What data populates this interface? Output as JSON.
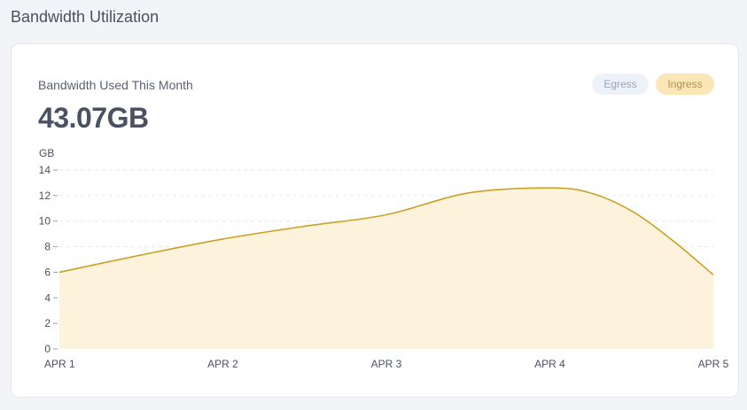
{
  "page": {
    "title": "Bandwidth Utilization"
  },
  "card": {
    "title": "Bandwidth Used This Month",
    "total": "43.07GB",
    "unit": "GB"
  },
  "toggles": {
    "egress_label": "Egress",
    "ingress_label": "Ingress",
    "active": "Ingress"
  },
  "colors": {
    "line": "#c9a224",
    "fill": "#fdf2dc",
    "grid": "#e5e7eb",
    "axis_text": "#4a5060"
  },
  "chart_data": {
    "type": "area",
    "x": [
      "APR 1",
      "APR 2",
      "APR 3",
      "APR 4",
      "APR 5"
    ],
    "series": [
      {
        "name": "Ingress",
        "x": [
          0,
          0.5,
          1,
          1.5,
          2,
          2.5,
          3,
          3.25,
          3.5,
          3.75,
          4
        ],
        "values": [
          6.0,
          7.35,
          8.6,
          9.6,
          10.5,
          12.2,
          12.6,
          12.2,
          10.8,
          8.5,
          5.8
        ]
      }
    ],
    "xlabel": "",
    "ylabel": "GB",
    "ylim": [
      0,
      14
    ],
    "yticks": [
      0,
      2,
      4,
      6,
      8,
      10,
      12,
      14
    ],
    "grid": true
  }
}
